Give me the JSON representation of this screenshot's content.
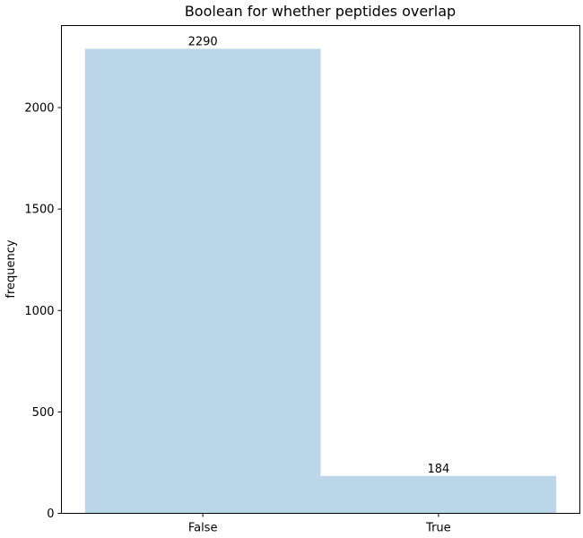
{
  "chart_data": {
    "type": "bar",
    "title": "Boolean for whether peptides overlap",
    "xlabel": "",
    "ylabel": "frequency",
    "categories": [
      "False",
      "True"
    ],
    "values": [
      2290,
      184
    ],
    "data_labels": [
      "2290",
      "184"
    ],
    "ylim": [
      0,
      2404.5
    ],
    "yticks": [
      0,
      500,
      1000,
      1500,
      2000
    ],
    "ytick_labels": [
      "0",
      "500",
      "1000",
      "1500",
      "2000"
    ],
    "grid": false,
    "legend": "none",
    "bar_color": "#bad6e8"
  }
}
